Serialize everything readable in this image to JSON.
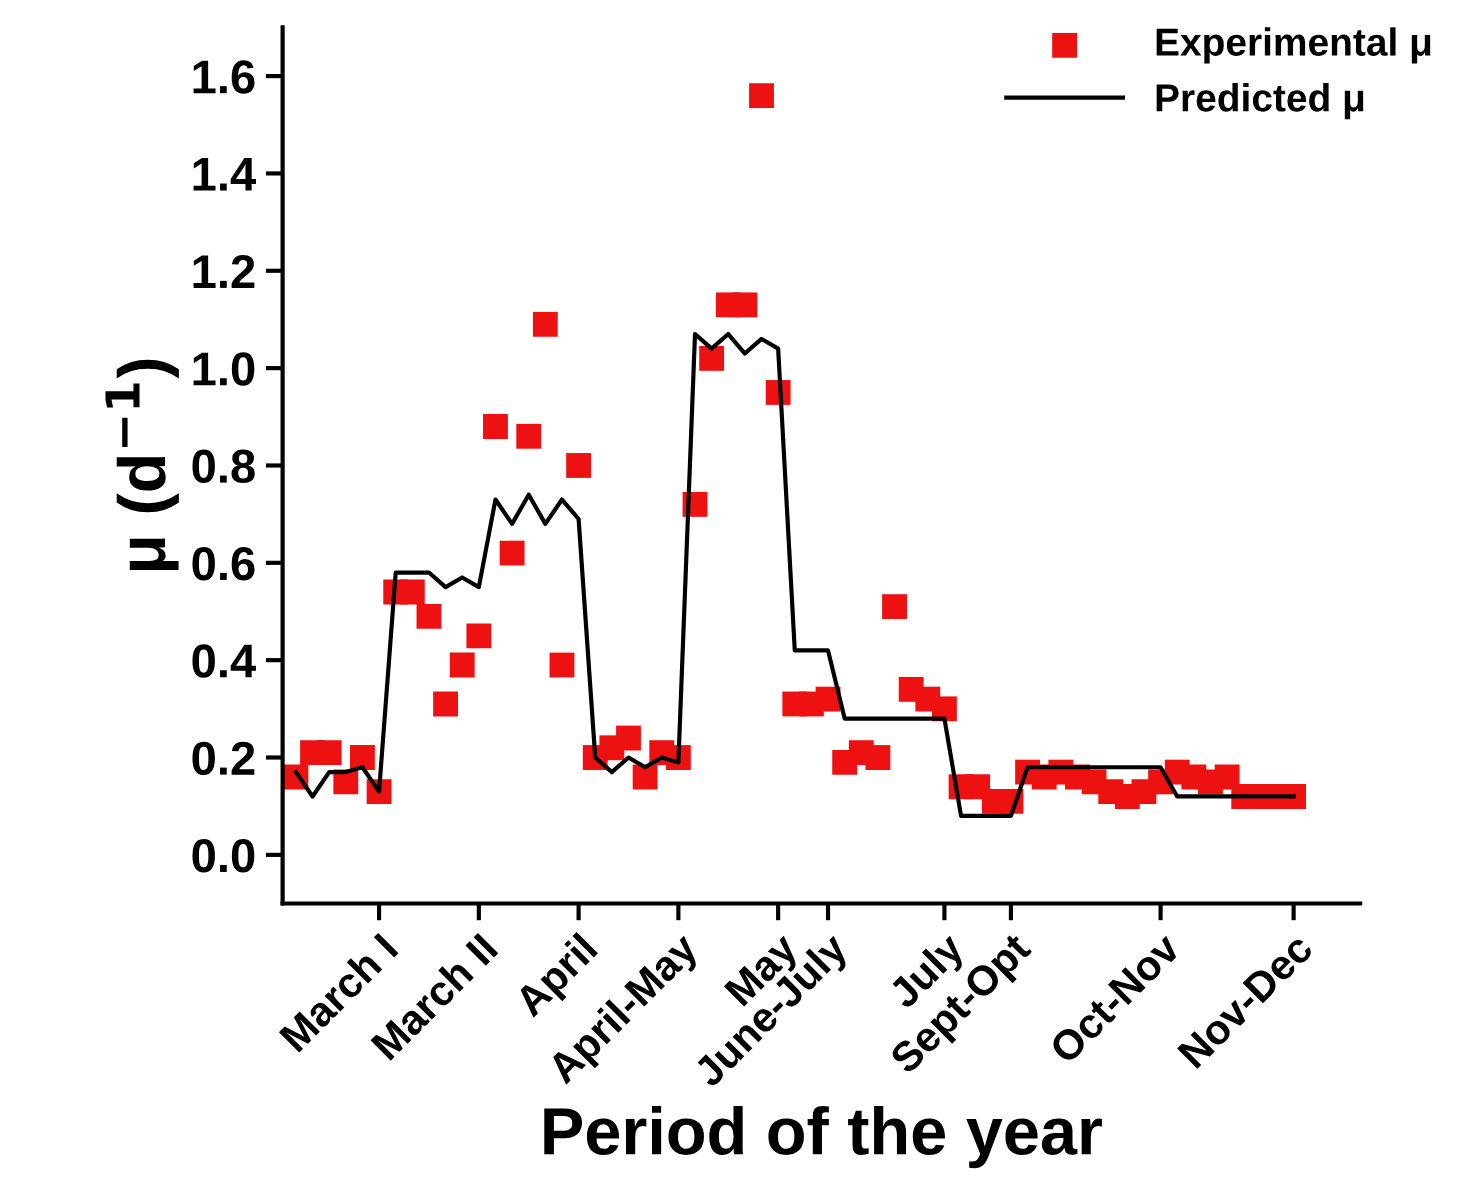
{
  "chart_data": {
    "type": "scatter",
    "xlabel": "Period of the year",
    "ylabel": "μ (d$^{−1}$)",
    "categories": [
      null,
      null,
      null,
      null,
      null,
      "March I",
      null,
      null,
      null,
      null,
      null,
      "March II",
      null,
      null,
      null,
      null,
      null,
      "April",
      null,
      null,
      null,
      null,
      null,
      "April-May",
      null,
      null,
      null,
      null,
      null,
      "May",
      null,
      null,
      "June-July",
      null,
      null,
      null,
      null,
      null,
      null,
      "July",
      null,
      null,
      null,
      "Sept-Opt",
      null,
      null,
      null,
      null,
      null,
      null,
      null,
      null,
      "Oct-Nov",
      null,
      null,
      null,
      null,
      null,
      null,
      null,
      "Nov-Dec"
    ],
    "series": [
      {
        "name": "Experimental μ",
        "color": "#ee1111",
        "marker": "square",
        "values": [
          0.16,
          0.21,
          0.21,
          0.15,
          0.2,
          0.13,
          0.54,
          0.54,
          0.49,
          0.31,
          0.39,
          0.45,
          0.88,
          0.62,
          0.86,
          1.09,
          0.39,
          0.8,
          0.2,
          0.22,
          0.24,
          0.16,
          0.21,
          0.2,
          0.72,
          1.02,
          1.13,
          1.13,
          1.56,
          0.95,
          0.31,
          0.31,
          0.32,
          0.19,
          0.21,
          0.2,
          0.51,
          0.34,
          0.32,
          0.3,
          0.14,
          0.14,
          0.11,
          0.11,
          0.17,
          0.16,
          0.17,
          0.16,
          0.15,
          0.13,
          0.12,
          0.13,
          0.15,
          0.17,
          0.16,
          0.15,
          0.16,
          0.12,
          0.12,
          0.12,
          0.12
        ]
      },
      {
        "name": "Predicted μ",
        "type": "line",
        "color": "#000000",
        "marker": "none",
        "line_style": "solid",
        "values": [
          0.17,
          0.12,
          0.17,
          0.17,
          0.18,
          0.13,
          0.58,
          0.58,
          0.58,
          0.55,
          0.57,
          0.55,
          0.73,
          0.68,
          0.74,
          0.68,
          0.73,
          0.69,
          0.2,
          0.17,
          0.2,
          0.18,
          0.2,
          0.19,
          1.07,
          1.04,
          1.07,
          1.03,
          1.06,
          1.04,
          0.42,
          0.42,
          0.42,
          0.28,
          0.28,
          0.28,
          0.28,
          0.28,
          0.28,
          0.28,
          0.08,
          0.08,
          0.08,
          0.08,
          0.18,
          0.18,
          0.18,
          0.18,
          0.18,
          0.18,
          0.18,
          0.18,
          0.18,
          0.12,
          0.12,
          0.12,
          0.12,
          0.12,
          0.12,
          0.12,
          0.12
        ]
      }
    ],
    "ylim": [
      -0.1,
      1.7
    ],
    "yticks": [
      {
        "value": 0,
        "label": "0.0"
      },
      {
        "value": 0.2,
        "label": "0.2"
      },
      {
        "value": 0.4,
        "label": "0.4"
      },
      {
        "value": 0.6,
        "label": "0.6"
      },
      {
        "value": 0.8,
        "label": "0.8"
      },
      {
        "value": 1.0,
        "label": "1.0"
      },
      {
        "value": 1.2,
        "label": "1.2"
      },
      {
        "value": 1.4,
        "label": "1.4"
      },
      {
        "value": 1.6,
        "label": "1.6"
      }
    ],
    "grid": false,
    "legend": "top right"
  }
}
